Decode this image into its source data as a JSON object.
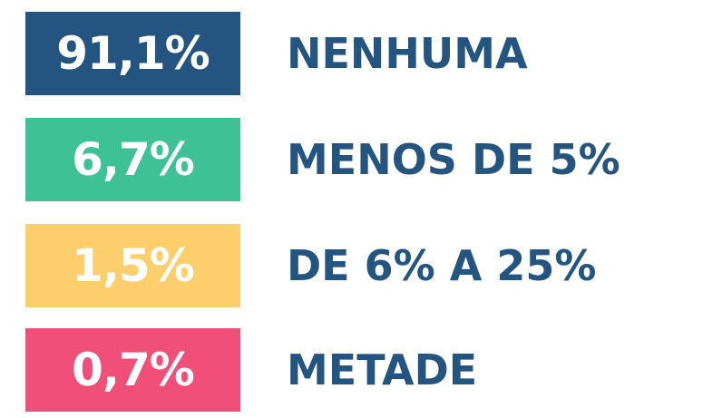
{
  "items": [
    {
      "value": "91,1%",
      "label": "NENHUMA",
      "color": "#245580"
    },
    {
      "value": "6,7%",
      "label": "MENOS DE 5%",
      "color": "#3fc196"
    },
    {
      "value": "1,5%",
      "label": "DE 6% A 25%",
      "color": "#fdce6c"
    },
    {
      "value": "0,7%",
      "label": "METADE",
      "color": "#ef4f79"
    }
  ]
}
